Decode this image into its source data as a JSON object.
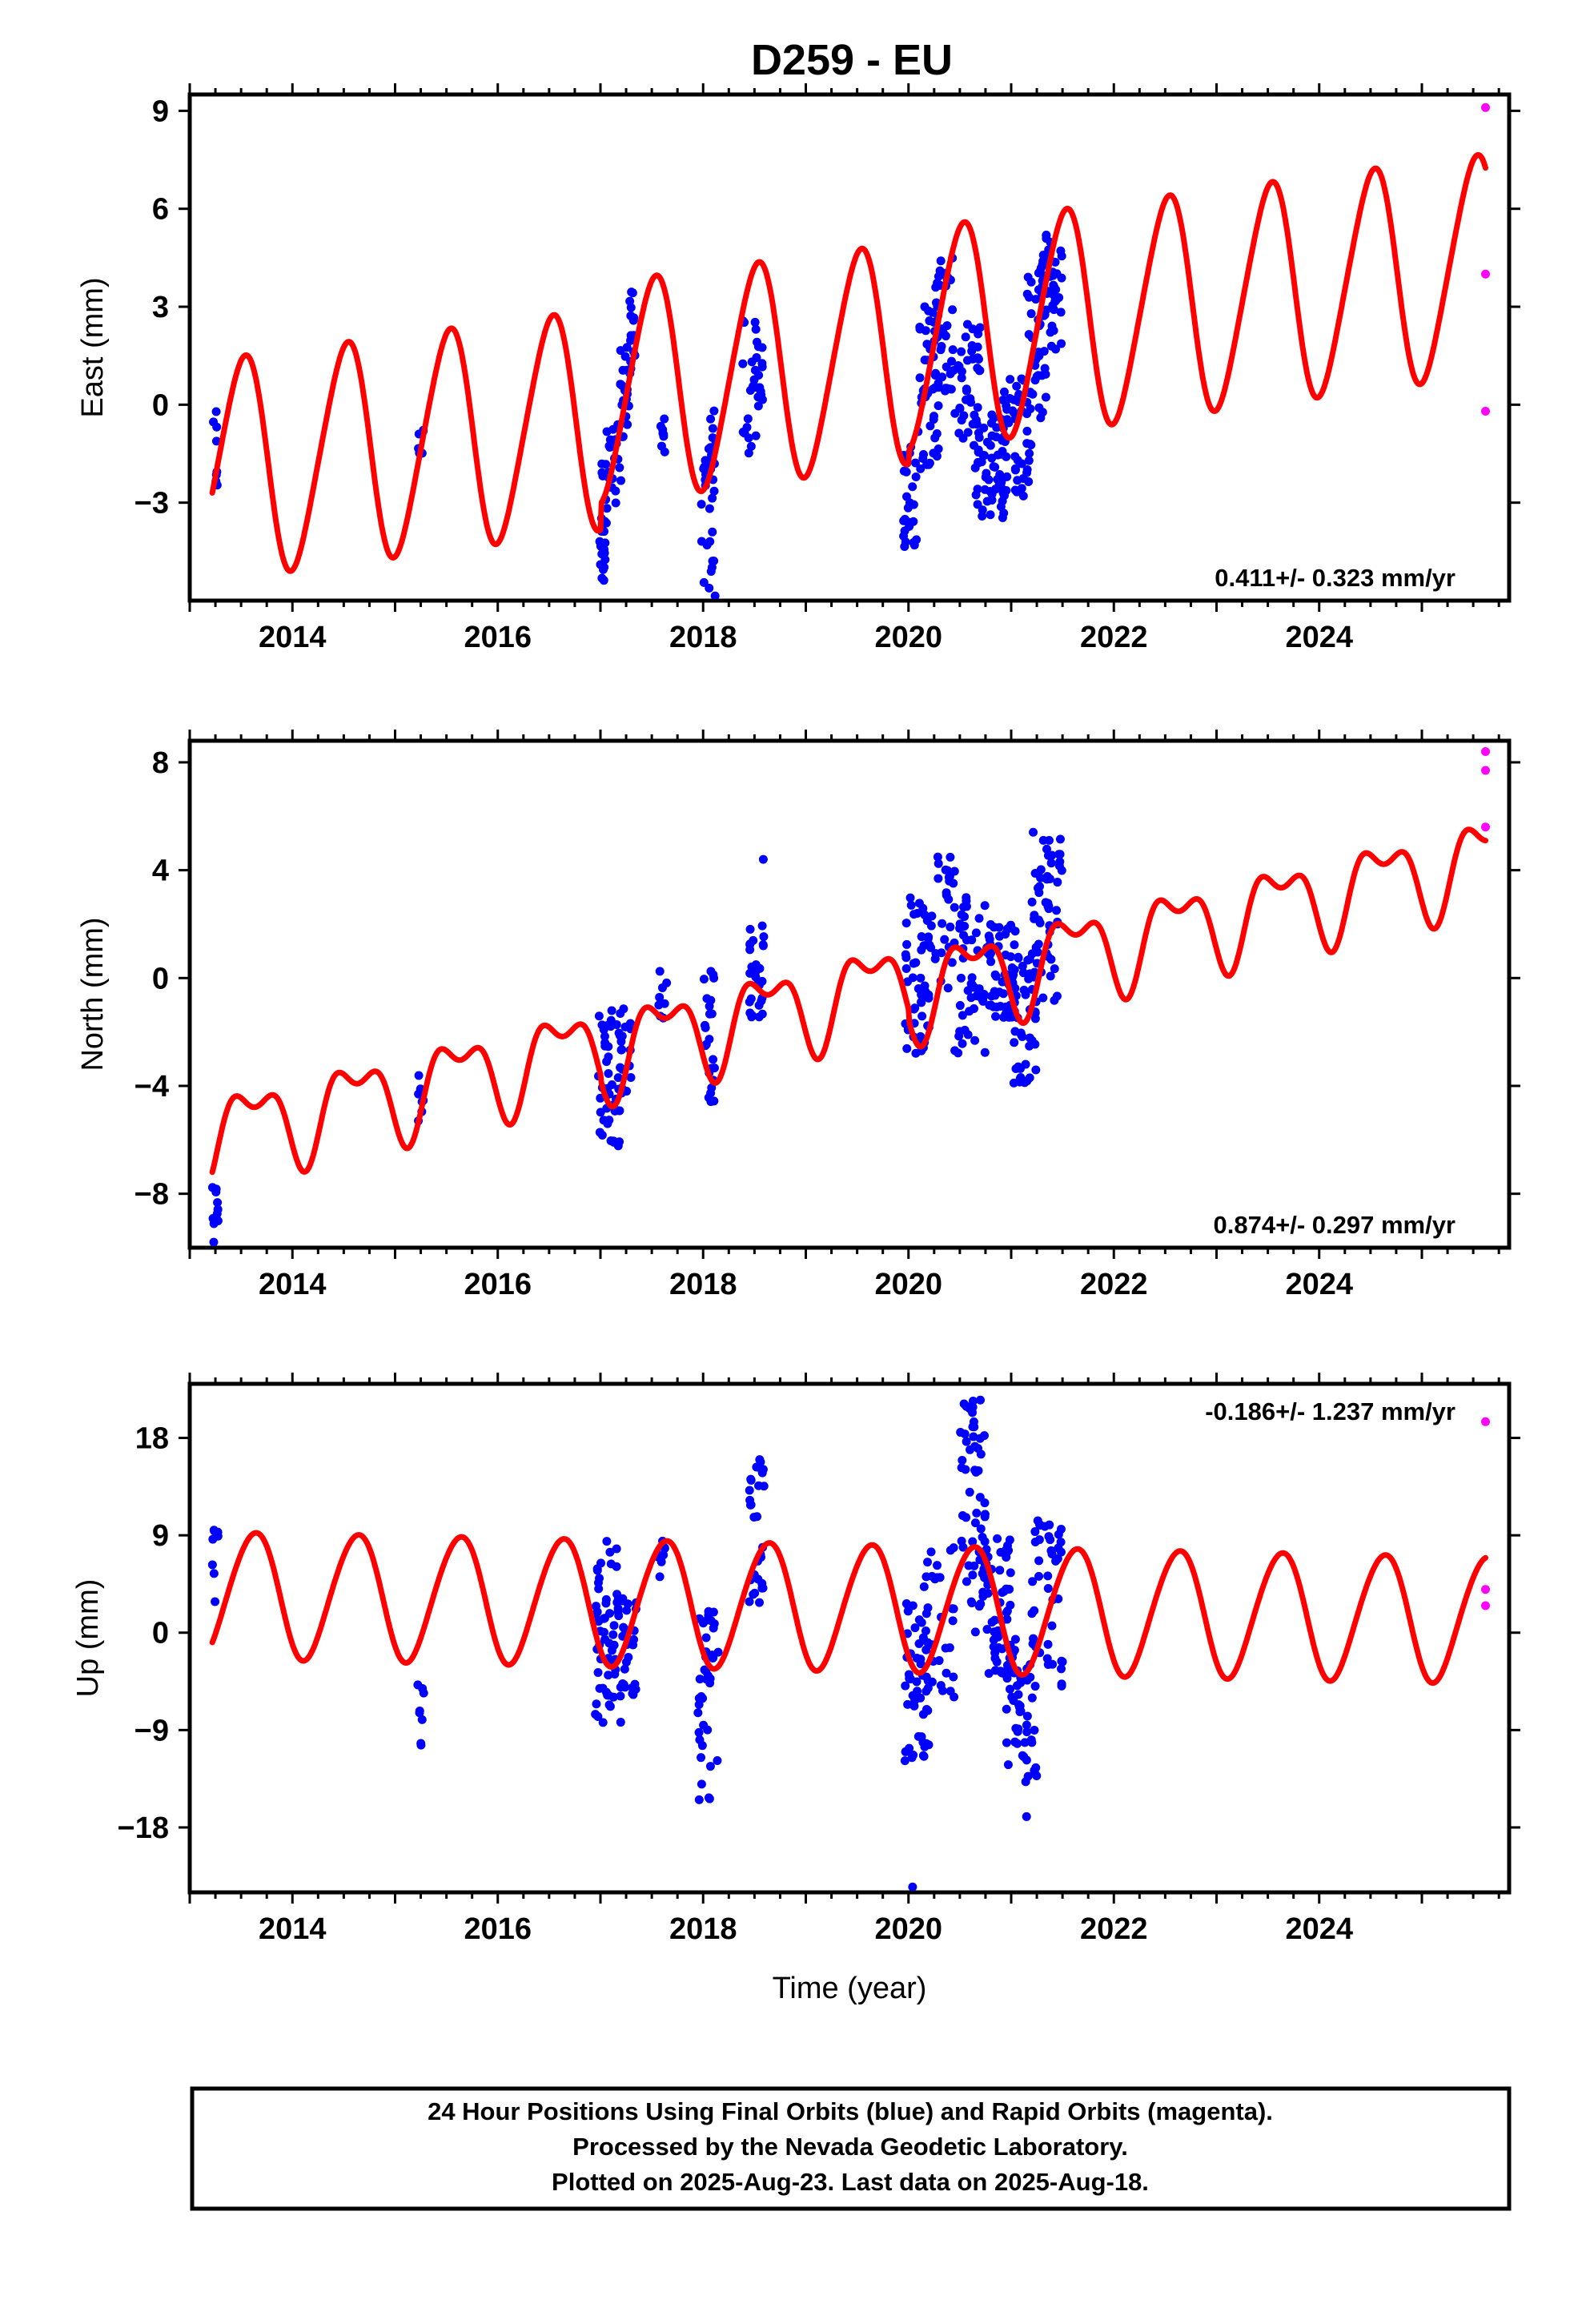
{
  "title": "D259 - EU",
  "footer": {
    "lines": [
      "24 Hour Positions Using Final Orbits (blue) and Rapid Orbits (magenta).",
      "Processed by the Nevada Geodetic Laboratory.",
      "Plotted on 2025-Aug-23. Last data on 2025-Aug-18."
    ]
  },
  "colors": {
    "final_orbits": "#0000ff",
    "rapid_orbits": "#ff00ff",
    "model": "#ff0000",
    "frame": "#000000"
  },
  "chart_data": [
    {
      "type": "scatter",
      "panel": "east",
      "ylabel": "East (mm)",
      "xlabel": "",
      "xlim": [
        2013.0,
        2025.85
      ],
      "ylim": [
        -6.0,
        9.5
      ],
      "yticks": [
        -3,
        0,
        3,
        6,
        9
      ],
      "xticks": [
        2014,
        2016,
        2018,
        2020,
        2022,
        2024
      ],
      "rate_label": "0.411+/- 0.323 mm/yr",
      "rate_position": "bottom-right",
      "model": {
        "start": 2013.22,
        "end": 2025.62,
        "ref": 2013.22,
        "offset": -2.0,
        "rate": 0.411,
        "sin1": 3.2,
        "cos1": -0.9,
        "sin2": -0.3,
        "cos2": 0.2,
        "step": [
          {
            "x": 2017.0,
            "dy": 0.8
          },
          {
            "x": 2020.0,
            "dy": 0.4
          }
        ]
      },
      "final_orbits": [
        {
          "x0": 2013.22,
          "x1": 2013.28,
          "y0": -3.0,
          "y1": -0.2,
          "n": 8
        },
        {
          "x0": 2015.22,
          "x1": 2015.28,
          "y0": -2.0,
          "y1": -0.6,
          "n": 6
        },
        {
          "x0": 2016.98,
          "x1": 2017.06,
          "y0": -5.4,
          "y1": -1.6,
          "n": 22
        },
        {
          "x0": 2017.05,
          "x1": 2017.2,
          "y0": -4.0,
          "y1": -0.6,
          "n": 25
        },
        {
          "x0": 2017.18,
          "x1": 2017.3,
          "y0": -1.0,
          "y1": 2.0,
          "n": 20
        },
        {
          "x0": 2017.28,
          "x1": 2017.34,
          "y0": 0.6,
          "y1": 3.5,
          "n": 14
        },
        {
          "x0": 2017.58,
          "x1": 2017.64,
          "y0": -1.5,
          "y1": 0.2,
          "n": 8
        },
        {
          "x0": 2017.98,
          "x1": 2018.12,
          "y0": -6.0,
          "y1": -1.5,
          "n": 28
        },
        {
          "x0": 2018.05,
          "x1": 2018.14,
          "y0": -2.0,
          "y1": 0.0,
          "n": 10
        },
        {
          "x0": 2018.38,
          "x1": 2018.58,
          "y0": -1.5,
          "y1": 2.6,
          "n": 32
        },
        {
          "x0": 2019.95,
          "x1": 2020.1,
          "y0": -4.5,
          "y1": -1.0,
          "n": 25
        },
        {
          "x0": 2020.08,
          "x1": 2020.3,
          "y0": -2.0,
          "y1": 3.2,
          "n": 45
        },
        {
          "x0": 2020.25,
          "x1": 2020.45,
          "y0": 0.4,
          "y1": 4.5,
          "n": 35
        },
        {
          "x0": 2020.45,
          "x1": 2020.7,
          "y0": -1.5,
          "y1": 2.5,
          "n": 40
        },
        {
          "x0": 2020.65,
          "x1": 2020.95,
          "y0": -3.5,
          "y1": -0.2,
          "n": 55
        },
        {
          "x0": 2020.9,
          "x1": 2021.2,
          "y0": -2.8,
          "y1": 1.2,
          "n": 50
        },
        {
          "x0": 2021.15,
          "x1": 2021.35,
          "y0": -0.5,
          "y1": 4.5,
          "n": 40
        },
        {
          "x0": 2021.3,
          "x1": 2021.5,
          "y0": 1.5,
          "y1": 5.3,
          "n": 40
        }
      ],
      "rapid_orbits": [
        {
          "x": 2025.62,
          "y": 9.1
        },
        {
          "x": 2025.62,
          "y": 4.0
        },
        {
          "x": 2025.62,
          "y": -0.2
        }
      ]
    },
    {
      "type": "scatter",
      "panel": "north",
      "ylabel": "North (mm)",
      "xlabel": "",
      "xlim": [
        2013.0,
        2025.85
      ],
      "ylim": [
        -10.0,
        8.8
      ],
      "yticks": [
        -8,
        -4,
        0,
        4,
        8
      ],
      "xticks": [
        2014,
        2016,
        2018,
        2020,
        2022,
        2024
      ],
      "rate_label": "0.874+/- 0.297 mm/yr",
      "rate_position": "bottom-right",
      "model": {
        "start": 2013.22,
        "end": 2025.62,
        "ref": 2013.22,
        "offset": -5.8,
        "rate": 0.874,
        "sin1": 0.9,
        "cos1": -1.1,
        "sin2": 0.7,
        "cos2": -0.3,
        "step": [
          {
            "x": 2017.0,
            "dy": -0.2
          },
          {
            "x": 2020.0,
            "dy": -0.4
          }
        ]
      },
      "final_orbits": [
        {
          "x0": 2013.22,
          "x1": 2013.28,
          "y0": -9.8,
          "y1": -7.4,
          "n": 10
        },
        {
          "x0": 2015.22,
          "x1": 2015.28,
          "y0": -5.5,
          "y1": -3.3,
          "n": 8
        },
        {
          "x0": 2016.98,
          "x1": 2017.2,
          "y0": -6.5,
          "y1": -1.0,
          "n": 45
        },
        {
          "x0": 2017.2,
          "x1": 2017.3,
          "y0": -4.5,
          "y1": -1.0,
          "n": 15
        },
        {
          "x0": 2017.55,
          "x1": 2017.65,
          "y0": -1.5,
          "y1": 0.4,
          "n": 8
        },
        {
          "x0": 2018.0,
          "x1": 2018.12,
          "y0": -4.6,
          "y1": 0.4,
          "n": 25
        },
        {
          "x0": 2018.45,
          "x1": 2018.6,
          "y0": -1.5,
          "y1": 2.0,
          "n": 30
        },
        {
          "x0": 2018.58,
          "x1": 2018.6,
          "y0": 4.4,
          "y1": 4.4,
          "n": 1
        },
        {
          "x0": 2019.95,
          "x1": 2020.2,
          "y0": -2.8,
          "y1": 3.0,
          "n": 50
        },
        {
          "x0": 2020.2,
          "x1": 2020.45,
          "y0": -0.5,
          "y1": 5.0,
          "n": 30
        },
        {
          "x0": 2020.45,
          "x1": 2020.75,
          "y0": -2.8,
          "y1": 3.5,
          "n": 45
        },
        {
          "x0": 2020.75,
          "x1": 2021.05,
          "y0": -1.5,
          "y1": 2.0,
          "n": 55
        },
        {
          "x0": 2021.0,
          "x1": 2021.25,
          "y0": -3.9,
          "y1": 1.0,
          "n": 45
        },
        {
          "x0": 2021.2,
          "x1": 2021.5,
          "y0": -1.0,
          "y1": 5.5,
          "n": 55
        }
      ],
      "rapid_orbits": [
        {
          "x": 2025.62,
          "y": 8.4
        },
        {
          "x": 2025.62,
          "y": 7.7
        },
        {
          "x": 2025.62,
          "y": 5.6
        }
      ]
    },
    {
      "type": "scatter",
      "panel": "up",
      "ylabel": "Up (mm)",
      "xlabel": "Time (year)",
      "xlim": [
        2013.0,
        2025.85
      ],
      "ylim": [
        -24.0,
        23.0
      ],
      "yticks": [
        -18,
        -9,
        0,
        9,
        18
      ],
      "xticks": [
        2014,
        2016,
        2018,
        2020,
        2022,
        2024
      ],
      "rate_label": "-0.186+/- 1.237 mm/yr",
      "rate_position": "top-right",
      "model": {
        "start": 2013.22,
        "end": 2025.62,
        "ref": 2013.22,
        "offset": 3.6,
        "rate": -0.186,
        "sin1": 3.3,
        "cos1": -4.8,
        "sin2": 0.3,
        "cos2": 0.3,
        "step": []
      },
      "final_orbits": [
        {
          "x0": 2013.22,
          "x1": 2013.28,
          "y0": 2.0,
          "y1": 10.5,
          "n": 8
        },
        {
          "x0": 2015.22,
          "x1": 2015.28,
          "y0": -10.5,
          "y1": -4.0,
          "n": 8
        },
        {
          "x0": 2016.95,
          "x1": 2017.2,
          "y0": -10.0,
          "y1": 8.5,
          "n": 60
        },
        {
          "x0": 2017.2,
          "x1": 2017.35,
          "y0": -6.0,
          "y1": 4.5,
          "n": 25
        },
        {
          "x0": 2017.55,
          "x1": 2017.65,
          "y0": 4.0,
          "y1": 8.5,
          "n": 8
        },
        {
          "x0": 2017.95,
          "x1": 2018.15,
          "y0": -15.5,
          "y1": 2.0,
          "n": 40
        },
        {
          "x0": 2018.45,
          "x1": 2018.6,
          "y0": 2.0,
          "y1": 16.0,
          "n": 30
        },
        {
          "x0": 2019.95,
          "x1": 2020.2,
          "y0": -12.0,
          "y1": 3.0,
          "n": 50
        },
        {
          "x0": 2020.15,
          "x1": 2020.45,
          "y0": -6.0,
          "y1": 8.0,
          "n": 30
        },
        {
          "x0": 2020.5,
          "x1": 2020.75,
          "y0": 0.0,
          "y1": 21.5,
          "n": 60
        },
        {
          "x0": 2020.75,
          "x1": 2021.0,
          "y0": -5.0,
          "y1": 9.0,
          "n": 50
        },
        {
          "x0": 2020.95,
          "x1": 2021.25,
          "y0": -14.0,
          "y1": 0.0,
          "n": 55
        },
        {
          "x0": 2021.2,
          "x1": 2021.5,
          "y0": -5.0,
          "y1": 10.5,
          "n": 40
        }
      ],
      "extra_points": [
        {
          "x": 2020.04,
          "y": -23.5
        },
        {
          "x": 2021.15,
          "y": -17.0
        },
        {
          "x": 2020.7,
          "y": 21.5
        }
      ],
      "rapid_orbits": [
        {
          "x": 2025.62,
          "y": 19.5
        },
        {
          "x": 2025.62,
          "y": 4.0
        },
        {
          "x": 2025.62,
          "y": 2.5
        }
      ]
    }
  ]
}
